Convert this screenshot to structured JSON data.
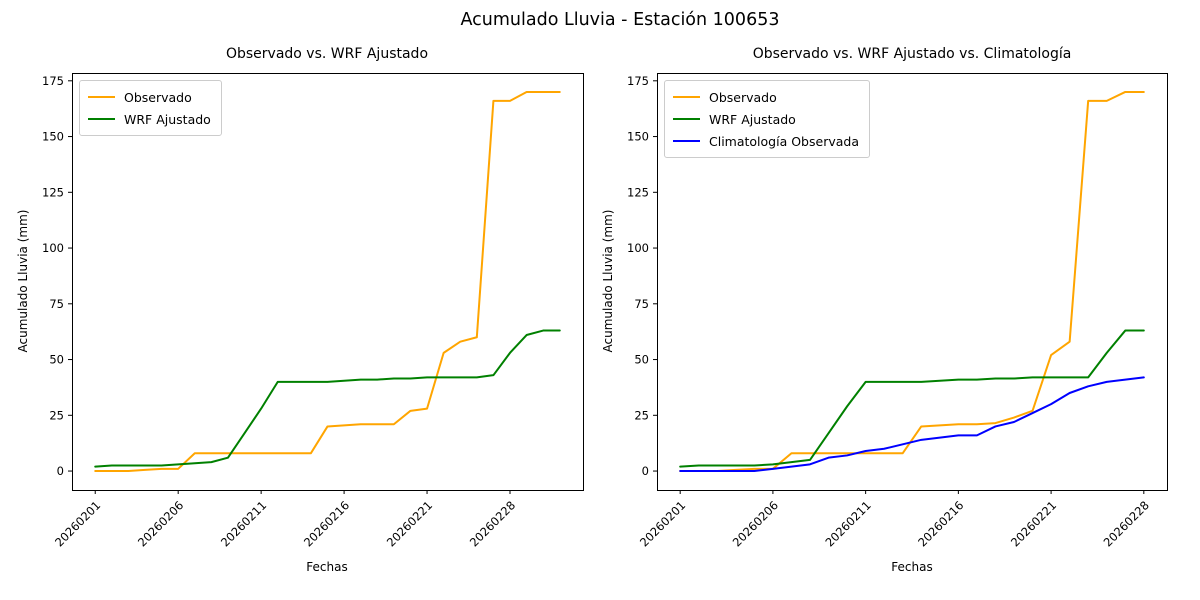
{
  "figure_title": "Acumulado Lluvia - Estación 100653",
  "colors": {
    "observado": "#ffa500",
    "wrf_ajustado": "#008000",
    "climatologia": "#0000ff",
    "spine": "#000000",
    "legend_border": "#cccccc"
  },
  "chart_data": [
    {
      "type": "line",
      "title": "Observado vs. WRF Ajustado",
      "xlabel": "Fechas",
      "ylabel": "Acumulado Lluvia (mm)",
      "ylim": [
        -8.5,
        178.5
      ],
      "yticks": [
        0,
        25,
        50,
        75,
        100,
        125,
        150,
        175
      ],
      "xtick_positions": [
        0,
        5,
        10,
        15,
        20,
        25
      ],
      "xtick_labels": [
        "20260201",
        "20260206",
        "20260211",
        "20260216",
        "20260221",
        "20260228"
      ],
      "grid": false,
      "legend_position": "upper-left",
      "series": [
        {
          "name": "Observado",
          "color": "#ffa500",
          "values": [
            0,
            0,
            0,
            0.5,
            1,
            1,
            8,
            8,
            8,
            8,
            8,
            8,
            8,
            8,
            20,
            20.5,
            21,
            21,
            21,
            27,
            28,
            53,
            58,
            60,
            166,
            166,
            170,
            170,
            170
          ]
        },
        {
          "name": "WRF Ajustado",
          "color": "#008000",
          "values": [
            2,
            2.5,
            2.5,
            2.5,
            2.5,
            3,
            3.5,
            4,
            6,
            17,
            28,
            40,
            40,
            40,
            40,
            40.5,
            41,
            41,
            41.5,
            41.5,
            42,
            42,
            42,
            42,
            43,
            53,
            61,
            63,
            63
          ]
        }
      ]
    },
    {
      "type": "line",
      "title": "Observado vs. WRF Ajustado vs. Climatología",
      "xlabel": "Fechas",
      "ylabel": "Acumulado Lluvia (mm)",
      "ylim": [
        -8.5,
        178.5
      ],
      "yticks": [
        0,
        25,
        50,
        75,
        100,
        125,
        150,
        175
      ],
      "xtick_positions": [
        0,
        5,
        10,
        15,
        20,
        25
      ],
      "xtick_labels": [
        "20260201",
        "20260206",
        "20260211",
        "20260216",
        "20260221",
        "20260228"
      ],
      "grid": false,
      "legend_position": "upper-left",
      "series": [
        {
          "name": "Observado",
          "color": "#ffa500",
          "values": [
            0,
            0,
            0,
            0.5,
            1,
            1,
            8,
            8,
            8,
            8,
            8,
            8,
            8,
            20,
            20.5,
            21,
            21,
            21.5,
            24,
            27,
            52,
            58,
            166,
            166,
            170,
            170
          ]
        },
        {
          "name": "WRF Ajustado",
          "color": "#008000",
          "values": [
            2,
            2.5,
            2.5,
            2.5,
            2.5,
            3,
            4,
            5,
            17,
            29,
            40,
            40,
            40,
            40,
            40.5,
            41,
            41,
            41.5,
            41.5,
            42,
            42,
            42,
            42,
            53,
            63,
            63
          ]
        },
        {
          "name": "Climatología Observada",
          "color": "#0000ff",
          "values": [
            0,
            0,
            0,
            0,
            0,
            1,
            2,
            3,
            6,
            7,
            9,
            10,
            12,
            14,
            15,
            16,
            16,
            20,
            22,
            26,
            30,
            35,
            38,
            40,
            41,
            42
          ]
        }
      ]
    }
  ]
}
